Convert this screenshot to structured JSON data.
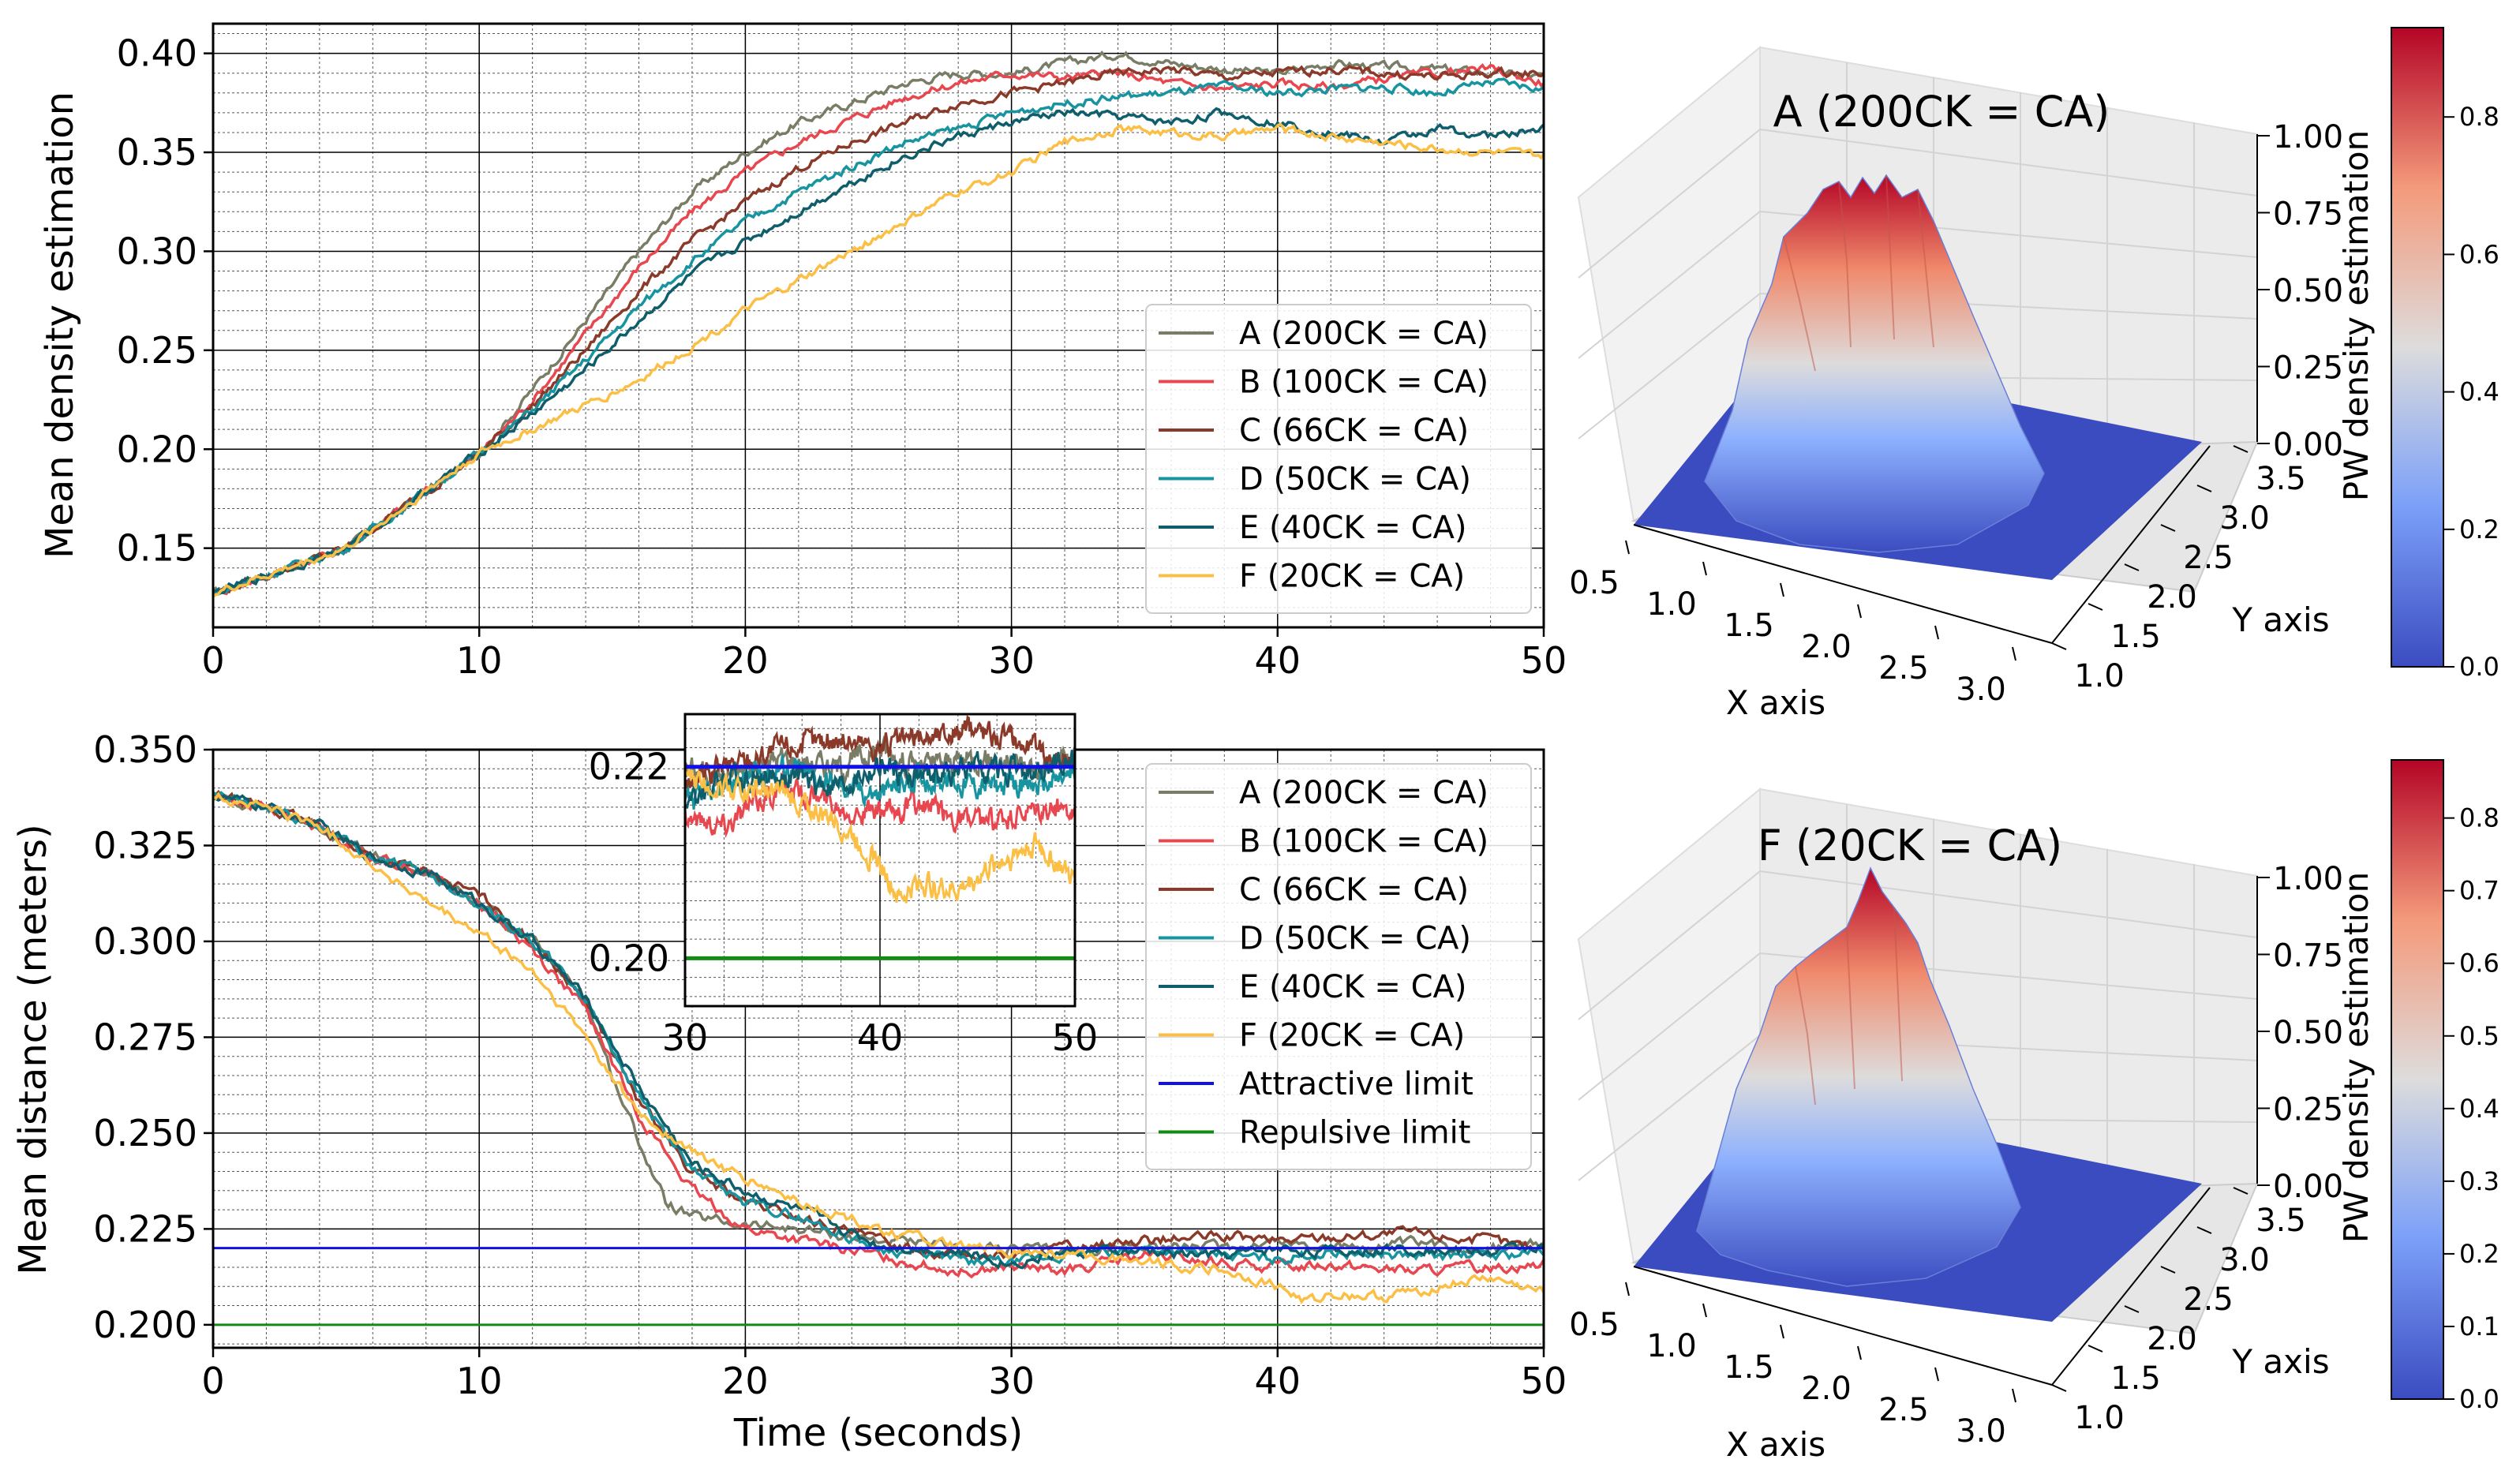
{
  "chart_data": [
    {
      "type": "line",
      "panel": "top-left",
      "xlabel": "",
      "ylabel": "Mean density estimation",
      "xlim": [
        0,
        50
      ],
      "ylim": [
        0.11,
        0.415
      ],
      "xticks": [
        "0",
        "10",
        "20",
        "30",
        "40",
        "50"
      ],
      "yticks": [
        "0.15",
        "0.20",
        "0.25",
        "0.30",
        "0.35",
        "0.40"
      ],
      "grid": true,
      "legend_position": "lower-right",
      "series": [
        {
          "name": "A (200CK = CA)",
          "color": "#7a7d65",
          "x": [
            0,
            5,
            10,
            12,
            14,
            16,
            18,
            20,
            22,
            24,
            26,
            28,
            30,
            32,
            34,
            36,
            38,
            40,
            42,
            44,
            46,
            48,
            50
          ],
          "values": [
            0.127,
            0.15,
            0.198,
            0.23,
            0.265,
            0.3,
            0.33,
            0.35,
            0.365,
            0.375,
            0.385,
            0.39,
            0.39,
            0.395,
            0.4,
            0.395,
            0.392,
            0.39,
            0.395,
            0.393,
            0.392,
            0.39,
            0.388
          ]
        },
        {
          "name": "B (100CK = CA)",
          "color": "#e8474f",
          "x": [
            0,
            5,
            10,
            12,
            14,
            16,
            18,
            20,
            22,
            24,
            26,
            28,
            30,
            32,
            34,
            36,
            38,
            40,
            42,
            44,
            46,
            48,
            50
          ],
          "values": [
            0.127,
            0.15,
            0.198,
            0.225,
            0.258,
            0.292,
            0.32,
            0.34,
            0.355,
            0.367,
            0.378,
            0.385,
            0.39,
            0.388,
            0.39,
            0.385,
            0.382,
            0.385,
            0.383,
            0.387,
            0.39,
            0.392,
            0.385
          ]
        },
        {
          "name": "C (66CK = CA)",
          "color": "#8b3a2a",
          "x": [
            0,
            5,
            10,
            12,
            14,
            16,
            18,
            20,
            22,
            24,
            26,
            28,
            30,
            32,
            34,
            36,
            38,
            40,
            42,
            44,
            46,
            48,
            50
          ],
          "values": [
            0.127,
            0.15,
            0.198,
            0.222,
            0.25,
            0.28,
            0.305,
            0.325,
            0.342,
            0.355,
            0.365,
            0.375,
            0.38,
            0.385,
            0.39,
            0.392,
            0.388,
            0.39,
            0.392,
            0.39,
            0.388,
            0.39,
            0.39
          ]
        },
        {
          "name": "D (50CK = CA)",
          "color": "#17949f",
          "x": [
            0,
            5,
            10,
            12,
            14,
            16,
            18,
            20,
            22,
            24,
            26,
            28,
            30,
            32,
            34,
            36,
            38,
            40,
            42,
            44,
            46,
            48,
            50
          ],
          "values": [
            0.127,
            0.15,
            0.198,
            0.22,
            0.245,
            0.272,
            0.295,
            0.315,
            0.33,
            0.343,
            0.355,
            0.362,
            0.37,
            0.375,
            0.378,
            0.38,
            0.383,
            0.38,
            0.382,
            0.383,
            0.38,
            0.385,
            0.382
          ]
        },
        {
          "name": "E (40CK = CA)",
          "color": "#0f5e6b",
          "x": [
            0,
            5,
            10,
            12,
            14,
            16,
            18,
            20,
            22,
            24,
            26,
            28,
            30,
            32,
            34,
            36,
            38,
            40,
            42,
            44,
            46,
            48,
            50
          ],
          "values": [
            0.127,
            0.15,
            0.198,
            0.218,
            0.24,
            0.265,
            0.288,
            0.305,
            0.32,
            0.335,
            0.348,
            0.358,
            0.365,
            0.37,
            0.368,
            0.365,
            0.37,
            0.365,
            0.36,
            0.355,
            0.362,
            0.358,
            0.362
          ]
        },
        {
          "name": "F (20CK = CA)",
          "color": "#fbbf45",
          "x": [
            0,
            5,
            10,
            12,
            14,
            16,
            18,
            20,
            22,
            24,
            26,
            28,
            30,
            32,
            34,
            36,
            38,
            40,
            42,
            44,
            46,
            48,
            50
          ],
          "values": [
            0.127,
            0.15,
            0.198,
            0.21,
            0.222,
            0.235,
            0.252,
            0.27,
            0.285,
            0.3,
            0.315,
            0.33,
            0.34,
            0.355,
            0.362,
            0.36,
            0.358,
            0.362,
            0.358,
            0.355,
            0.352,
            0.35,
            0.348
          ]
        }
      ]
    },
    {
      "type": "line",
      "panel": "bottom-left",
      "xlabel": "Time (seconds)",
      "ylabel": "Mean distance (meters)",
      "xlim": [
        0,
        50
      ],
      "ylim": [
        0.194,
        0.35
      ],
      "xticks": [
        "0",
        "10",
        "20",
        "30",
        "40",
        "50"
      ],
      "yticks": [
        "0.200",
        "0.225",
        "0.250",
        "0.275",
        "0.300",
        "0.325",
        "0.350"
      ],
      "grid": true,
      "legend_position": "upper-right",
      "reference_lines": [
        {
          "name": "Attractive limit",
          "color": "#1010e8",
          "y": 0.22
        },
        {
          "name": "Repulsive limit",
          "color": "#138a13",
          "y": 0.2
        }
      ],
      "series": [
        {
          "name": "A (200CK = CA)",
          "color": "#7a7d65",
          "x": [
            0,
            2,
            4,
            6,
            8,
            10,
            12,
            14,
            15,
            16,
            17,
            18,
            20,
            22,
            25,
            28,
            30,
            32,
            35,
            38,
            40,
            42,
            45,
            48,
            50
          ],
          "values": [
            0.338,
            0.335,
            0.33,
            0.322,
            0.318,
            0.31,
            0.3,
            0.285,
            0.265,
            0.248,
            0.232,
            0.228,
            0.226,
            0.225,
            0.222,
            0.22,
            0.22,
            0.219,
            0.221,
            0.22,
            0.222,
            0.22,
            0.221,
            0.22,
            0.221
          ]
        },
        {
          "name": "B (100CK = CA)",
          "color": "#e8474f",
          "x": [
            0,
            2,
            4,
            6,
            8,
            10,
            12,
            14,
            16,
            18,
            20,
            22,
            25,
            28,
            30,
            32,
            35,
            38,
            40,
            42,
            45,
            48,
            50
          ],
          "values": [
            0.338,
            0.335,
            0.33,
            0.322,
            0.318,
            0.31,
            0.298,
            0.282,
            0.255,
            0.235,
            0.225,
            0.222,
            0.218,
            0.214,
            0.215,
            0.214,
            0.218,
            0.216,
            0.215,
            0.216,
            0.214,
            0.215,
            0.216
          ]
        },
        {
          "name": "C (66CK = CA)",
          "color": "#8b3a2a",
          "x": [
            0,
            2,
            4,
            6,
            8,
            10,
            12,
            14,
            16,
            18,
            20,
            22,
            25,
            28,
            30,
            32,
            35,
            38,
            40,
            42,
            45,
            48,
            50
          ],
          "values": [
            0.338,
            0.335,
            0.33,
            0.322,
            0.318,
            0.312,
            0.3,
            0.285,
            0.258,
            0.24,
            0.232,
            0.228,
            0.222,
            0.218,
            0.218,
            0.22,
            0.222,
            0.223,
            0.222,
            0.223,
            0.224,
            0.222,
            0.22
          ]
        },
        {
          "name": "D (50CK = CA)",
          "color": "#17949f",
          "x": [
            0,
            2,
            4,
            6,
            8,
            10,
            12,
            14,
            16,
            18,
            20,
            22,
            25,
            28,
            30,
            32,
            35,
            38,
            40,
            42,
            45,
            48,
            50
          ],
          "values": [
            0.338,
            0.335,
            0.33,
            0.322,
            0.318,
            0.31,
            0.3,
            0.285,
            0.26,
            0.24,
            0.232,
            0.228,
            0.22,
            0.217,
            0.216,
            0.218,
            0.22,
            0.218,
            0.217,
            0.219,
            0.218,
            0.218,
            0.219
          ]
        },
        {
          "name": "E (40CK = CA)",
          "color": "#0f5e6b",
          "x": [
            0,
            2,
            4,
            6,
            8,
            10,
            12,
            14,
            16,
            18,
            20,
            22,
            25,
            28,
            30,
            32,
            35,
            38,
            40,
            42,
            45,
            48,
            50
          ],
          "values": [
            0.338,
            0.335,
            0.33,
            0.322,
            0.318,
            0.31,
            0.3,
            0.285,
            0.262,
            0.242,
            0.235,
            0.23,
            0.221,
            0.219,
            0.216,
            0.219,
            0.219,
            0.218,
            0.22,
            0.219,
            0.22,
            0.219,
            0.221
          ]
        },
        {
          "name": "F (20CK = CA)",
          "color": "#fbbf45",
          "x": [
            0,
            2,
            4,
            6,
            8,
            10,
            12,
            14,
            16,
            18,
            20,
            22,
            25,
            28,
            30,
            32,
            35,
            38,
            40,
            41,
            42,
            44,
            46,
            48,
            50
          ],
          "values": [
            0.338,
            0.335,
            0.33,
            0.32,
            0.31,
            0.302,
            0.292,
            0.275,
            0.255,
            0.245,
            0.238,
            0.232,
            0.225,
            0.22,
            0.219,
            0.218,
            0.217,
            0.214,
            0.21,
            0.206,
            0.208,
            0.207,
            0.21,
            0.212,
            0.208
          ]
        },
        {
          "name": "Attractive limit",
          "color": "#1010e8",
          "x": [
            0,
            50
          ],
          "values": [
            0.22,
            0.22
          ]
        },
        {
          "name": "Repulsive limit",
          "color": "#138a13",
          "x": [
            0,
            50
          ],
          "values": [
            0.2,
            0.2
          ]
        }
      ],
      "inset": {
        "xlim": [
          30,
          50
        ],
        "ylim": [
          0.195,
          0.2255
        ],
        "xticks": [
          "30",
          "40",
          "50"
        ],
        "yticks": [
          "0.20",
          "0.22"
        ],
        "series_ref": "all"
      }
    },
    {
      "type": "surface3d",
      "panel": "top-right",
      "title": "A (200CK = CA)",
      "xlabel": "X axis",
      "ylabel": "Y axis",
      "zlabel": "PW density estimation",
      "xticks": [
        "0.5",
        "1.0",
        "1.5",
        "2.0",
        "2.5",
        "3.0"
      ],
      "yticks": [
        "1.0",
        "1.5",
        "2.0",
        "2.5",
        "3.0",
        "3.5"
      ],
      "zticks": [
        "0.00",
        "0.25",
        "0.50",
        "0.75",
        "1.00"
      ],
      "colormap": "coolwarm",
      "peak": 0.92,
      "colorbar_ticks": [
        "0.0",
        "0.2",
        "0.4",
        "0.6",
        "0.8"
      ],
      "colorbar_range": [
        0,
        0.93
      ]
    },
    {
      "type": "surface3d",
      "panel": "bottom-right",
      "title": "F (20CK = CA)",
      "xlabel": "X axis",
      "ylabel": "Y axis",
      "zlabel": "PW density estimation",
      "xticks": [
        "0.5",
        "1.0",
        "1.5",
        "2.0",
        "2.5",
        "3.0"
      ],
      "yticks": [
        "1.0",
        "1.5",
        "2.0",
        "2.5",
        "3.0",
        "3.5"
      ],
      "zticks": [
        "0.00",
        "0.25",
        "0.50",
        "0.75",
        "1.00"
      ],
      "colormap": "coolwarm",
      "peak": 0.86,
      "colorbar_ticks": [
        "0.0",
        "0.1",
        "0.2",
        "0.3",
        "0.4",
        "0.5",
        "0.6",
        "0.7",
        "0.8"
      ],
      "colorbar_range": [
        0,
        0.88
      ]
    }
  ]
}
